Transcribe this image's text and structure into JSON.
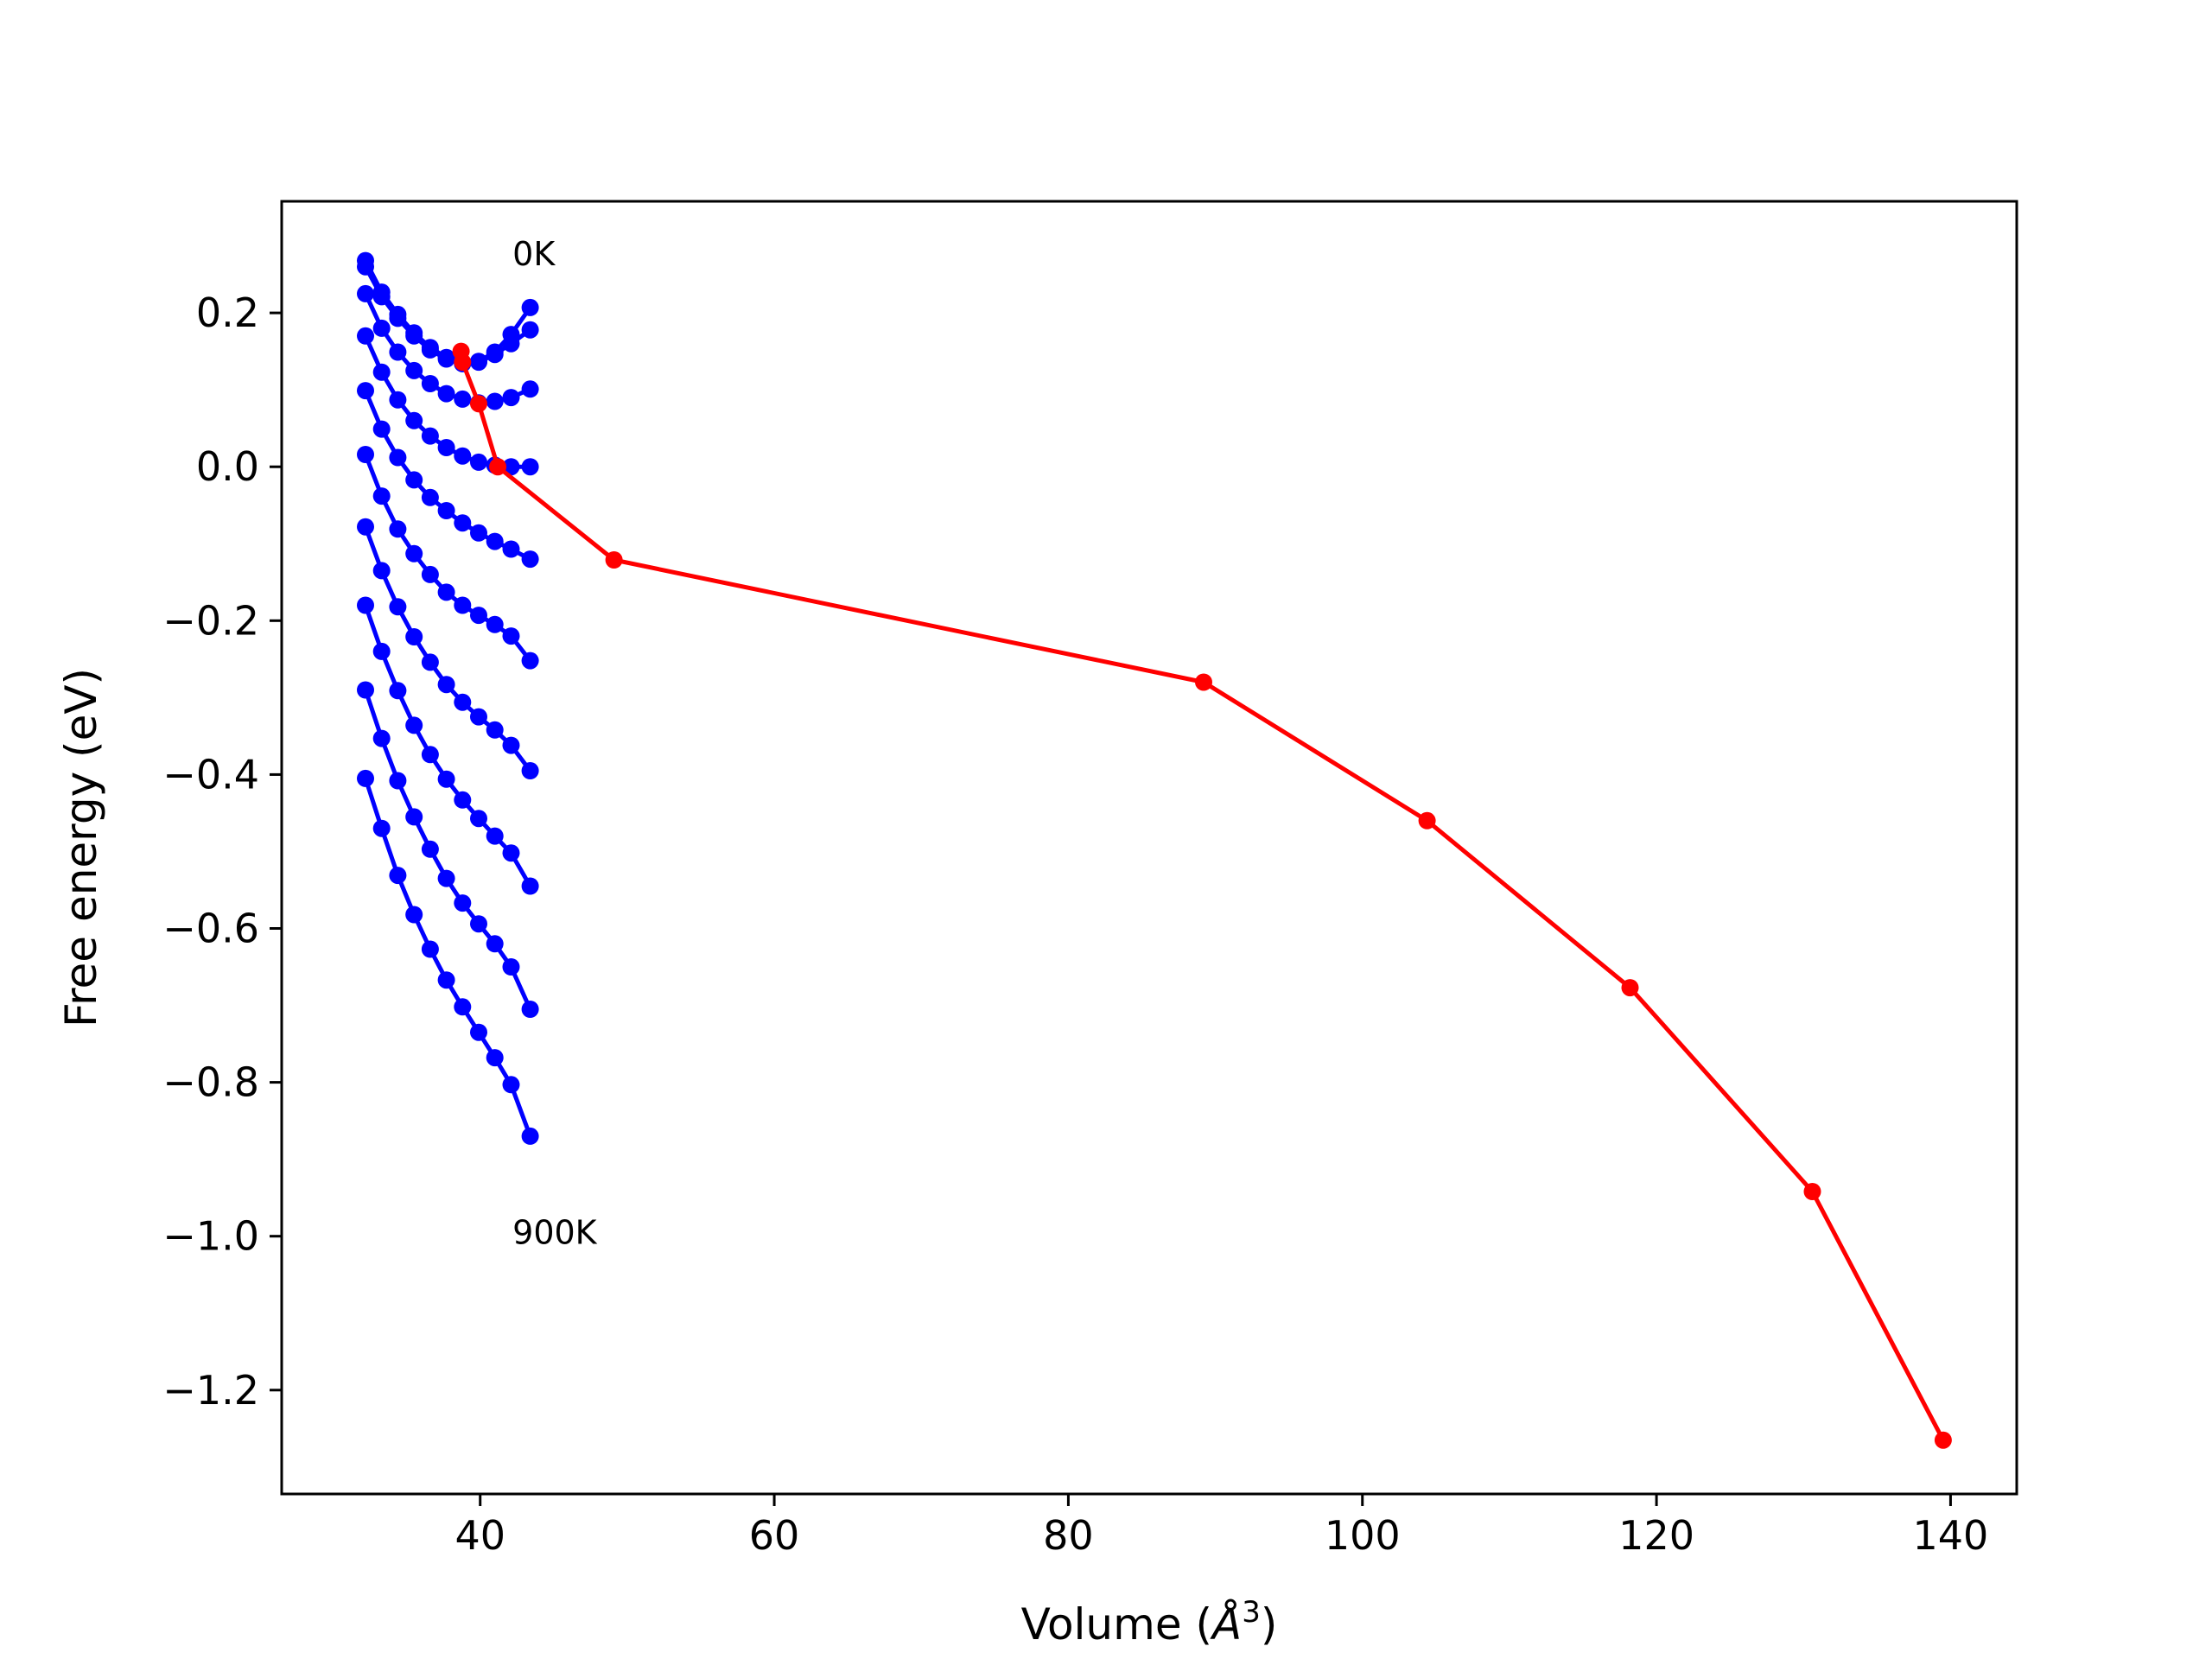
{
  "chart_data": {
    "type": "line",
    "title": "",
    "xlabel": "Volume ($\\AA^3$)",
    "xlabel_parts": {
      "before": "Volume (",
      "symbol": "Å",
      "sup": "3",
      "after": ")"
    },
    "ylabel": "Free energy (eV)",
    "xlim": [
      26.5,
      144.5
    ],
    "ylim": [
      -1.335,
      0.345
    ],
    "xticks": [
      40,
      60,
      80,
      100,
      120,
      140
    ],
    "xtick_labels": [
      "40",
      "60",
      "80",
      "100",
      "120",
      "140"
    ],
    "yticks": [
      0.2,
      0.0,
      -0.2,
      -0.4,
      -0.6,
      -0.8,
      -1.0,
      -1.2
    ],
    "ytick_labels": [
      "0.2",
      "0.0",
      "−0.2",
      "−0.4",
      "−0.6",
      "−0.8",
      "−1.0",
      "−1.2"
    ],
    "grid": false,
    "legend": false,
    "annotations": [
      {
        "text": "0K",
        "x": 42.2,
        "y": 0.262
      },
      {
        "text": "900K",
        "x": 42.2,
        "y": -1.01
      }
    ],
    "colors": {
      "isotherms": "#0000ff",
      "minimum_path": "#ff0000",
      "frame": "#000000"
    },
    "isotherm_volumes": [
      32.2,
      33.3,
      34.4,
      35.5,
      36.6,
      37.7,
      38.8,
      39.9,
      41.0,
      42.1,
      43.4
    ],
    "isotherms": [
      {
        "values": [
          0.268,
          0.227,
          0.198,
          0.174,
          0.155,
          0.142,
          0.135,
          0.137,
          0.149,
          0.172,
          0.207
        ]
      },
      {
        "values": [
          0.26,
          0.221,
          0.193,
          0.17,
          0.152,
          0.14,
          0.134,
          0.136,
          0.146,
          0.16,
          0.178
        ]
      },
      {
        "values": [
          0.225,
          0.18,
          0.149,
          0.125,
          0.108,
          0.095,
          0.088,
          0.083,
          0.085,
          0.09,
          0.101
        ]
      },
      {
        "values": [
          0.17,
          0.123,
          0.087,
          0.06,
          0.04,
          0.025,
          0.014,
          0.006,
          0.002,
          0.0,
          0.0
        ]
      },
      {
        "values": [
          0.099,
          0.049,
          0.012,
          -0.017,
          -0.04,
          -0.057,
          -0.073,
          -0.086,
          -0.097,
          -0.107,
          -0.12
        ]
      },
      {
        "values": [
          0.016,
          -0.038,
          -0.081,
          -0.113,
          -0.14,
          -0.163,
          -0.18,
          -0.193,
          -0.205,
          -0.22,
          -0.252
        ]
      },
      {
        "values": [
          -0.078,
          -0.135,
          -0.182,
          -0.221,
          -0.254,
          -0.283,
          -0.306,
          -0.325,
          -0.342,
          -0.362,
          -0.395
        ]
      },
      {
        "values": [
          -0.18,
          -0.24,
          -0.291,
          -0.336,
          -0.374,
          -0.406,
          -0.433,
          -0.457,
          -0.48,
          -0.502,
          -0.545
        ]
      },
      {
        "values": [
          -0.29,
          -0.353,
          -0.408,
          -0.455,
          -0.497,
          -0.535,
          -0.567,
          -0.594,
          -0.62,
          -0.65,
          -0.705
        ]
      },
      {
        "values": [
          -0.405,
          -0.47,
          -0.531,
          -0.582,
          -0.627,
          -0.667,
          -0.702,
          -0.735,
          -0.768,
          -0.803,
          -0.87
        ]
      }
    ],
    "minimum_path": {
      "x": [
        38.7,
        38.8,
        39.9,
        41.2,
        49.1,
        89.2,
        104.4,
        118.2,
        130.6,
        139.5
      ],
      "y": [
        0.15,
        0.136,
        0.082,
        0.0,
        -0.121,
        -0.28,
        -0.46,
        -0.677,
        -0.942,
        -1.265
      ]
    }
  }
}
